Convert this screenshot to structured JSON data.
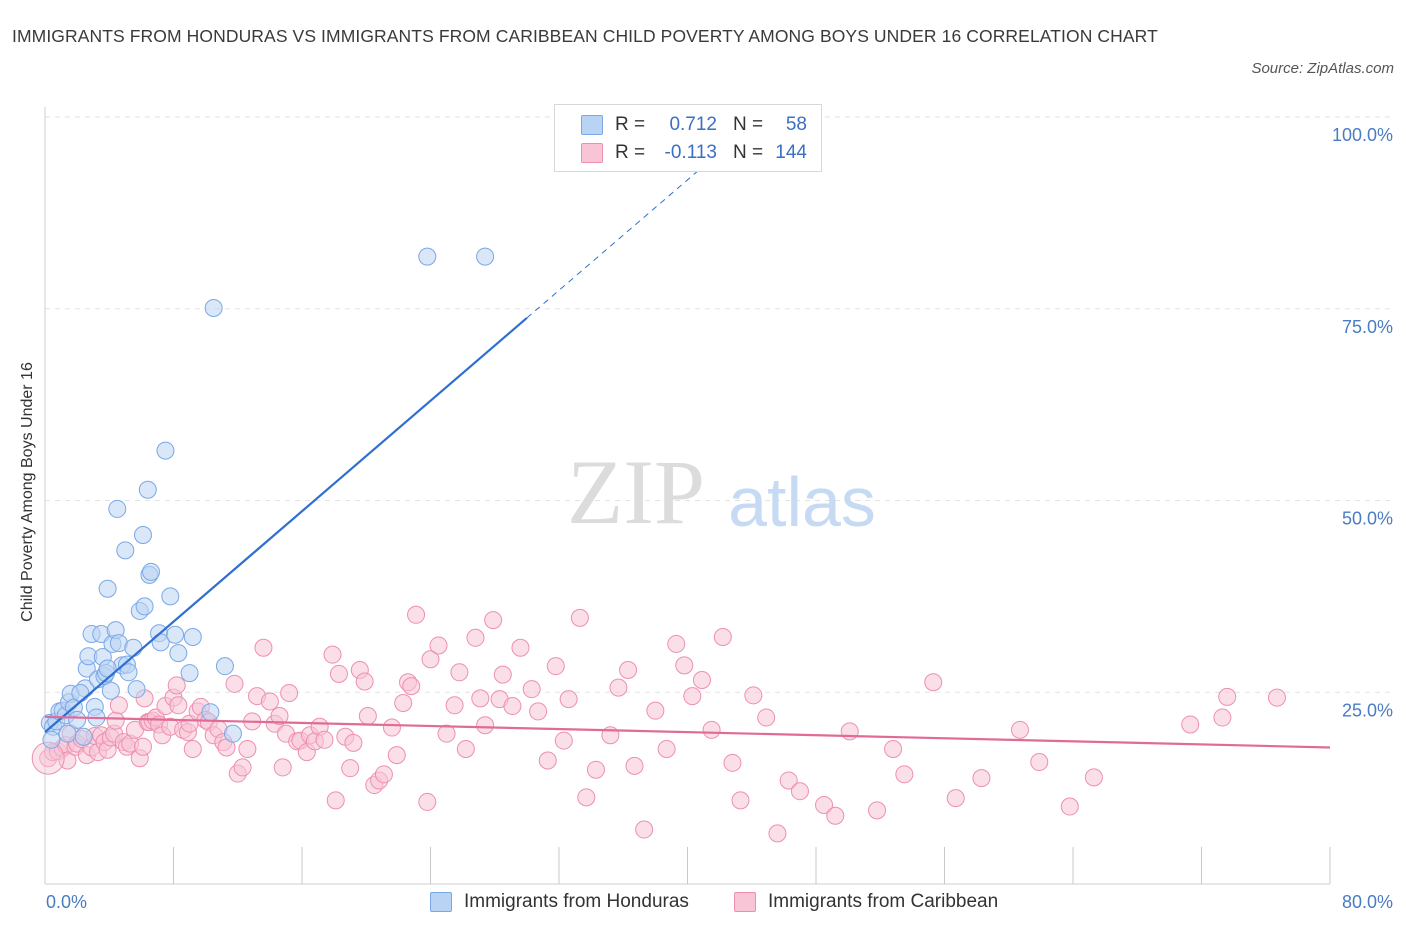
{
  "title": "IMMIGRANTS FROM HONDURAS VS IMMIGRANTS FROM CARIBBEAN CHILD POVERTY AMONG BOYS UNDER 16 CORRELATION CHART",
  "source": "Source: ZipAtlas.com",
  "watermark": {
    "zip": "ZIP",
    "atlas": "atlas"
  },
  "colors": {
    "blue": "#7aa8e6",
    "blue_fill": "#b9d3f4",
    "blue_line": "#2f6fd0",
    "pink": "#ee8fb0",
    "pink_fill": "#f7c5d6",
    "pink_line": "#e06b98",
    "axis_text": "#4a7cc4",
    "grid": "#e2e2e2"
  },
  "legend": {
    "rows": [
      {
        "r_label": "R =",
        "r_value": "0.712",
        "n_label": "N =",
        "n_value": "58"
      },
      {
        "r_label": "R =",
        "r_value": "-0.113",
        "n_label": "N =",
        "n_value": "144"
      }
    ]
  },
  "bottom_legend": [
    "Immigrants from Honduras",
    "Immigrants from Caribbean"
  ],
  "chart_data": {
    "type": "scatter",
    "title": "IMMIGRANTS FROM HONDURAS VS IMMIGRANTS FROM CARIBBEAN CHILD POVERTY AMONG BOYS UNDER 16 CORRELATION CHART",
    "xlabel": "",
    "ylabel": "Child Poverty Among Boys Under 16",
    "xlim": [
      0,
      80
    ],
    "ylim": [
      0,
      100
    ],
    "x_tick_labels": [
      "0.0%",
      "80.0%"
    ],
    "y_tick_labels": [
      "25.0%",
      "50.0%",
      "75.0%",
      "100.0%"
    ],
    "y_ticks": [
      25,
      50,
      75,
      100
    ],
    "x_minor_ticks": [
      8,
      16,
      24,
      32,
      40,
      48,
      56,
      64,
      72,
      80
    ],
    "grid": true,
    "legend_position": "top-center",
    "series": [
      {
        "name": "Immigrants from Honduras",
        "color": "#7aa8e6",
        "R": 0.712,
        "N": 58,
        "trend": {
          "x": [
            0,
            30
          ],
          "y": [
            19.8,
            73.8
          ]
        },
        "trend_dashed": {
          "x": [
            30,
            42
          ],
          "y": [
            73.8,
            95.4
          ]
        },
        "points": [
          [
            0.3,
            21
          ],
          [
            0.5,
            20.5
          ],
          [
            0.7,
            21.2
          ],
          [
            0.9,
            22.5
          ],
          [
            1.1,
            22.6
          ],
          [
            1.3,
            22
          ],
          [
            1.5,
            23.7
          ],
          [
            1.6,
            24.8
          ],
          [
            1.8,
            23
          ],
          [
            2.0,
            21.4
          ],
          [
            2.4,
            19.2
          ],
          [
            2.5,
            25.5
          ],
          [
            2.6,
            28.1
          ],
          [
            2.7,
            29.7
          ],
          [
            2.9,
            32.6
          ],
          [
            3.1,
            23.1
          ],
          [
            3.2,
            21.7
          ],
          [
            3.3,
            26.7
          ],
          [
            3.5,
            32.6
          ],
          [
            3.6,
            29.6
          ],
          [
            3.7,
            27.1
          ],
          [
            3.8,
            27.5
          ],
          [
            3.9,
            38.5
          ],
          [
            4.1,
            25.2
          ],
          [
            4.2,
            31.3
          ],
          [
            4.4,
            33.1
          ],
          [
            4.5,
            48.9
          ],
          [
            4.6,
            31.4
          ],
          [
            4.8,
            28.5
          ],
          [
            5.0,
            43.5
          ],
          [
            5.1,
            28.6
          ],
          [
            5.2,
            27.6
          ],
          [
            5.5,
            30.8
          ],
          [
            5.7,
            25.4
          ],
          [
            5.9,
            35.6
          ],
          [
            6.1,
            45.5
          ],
          [
            6.2,
            36.2
          ],
          [
            6.4,
            51.4
          ],
          [
            6.5,
            40.3
          ],
          [
            6.6,
            40.7
          ],
          [
            7.1,
            32.7
          ],
          [
            7.2,
            31.5
          ],
          [
            7.5,
            56.5
          ],
          [
            7.8,
            37.5
          ],
          [
            8.1,
            32.5
          ],
          [
            8.3,
            30.1
          ],
          [
            9.0,
            27.5
          ],
          [
            9.2,
            32.2
          ],
          [
            10.3,
            22.4
          ],
          [
            10.5,
            75.1
          ],
          [
            11.2,
            28.4
          ],
          [
            11.7,
            19.6
          ],
          [
            23.8,
            81.8
          ],
          [
            27.4,
            81.8
          ],
          [
            0.4,
            18.8
          ],
          [
            1.4,
            19.6
          ],
          [
            2.2,
            24.9
          ],
          [
            3.9,
            28.1
          ]
        ]
      },
      {
        "name": "Immigrants from Caribbean",
        "color": "#ee8fb0",
        "R": -0.113,
        "N": 144,
        "trend": {
          "x": [
            0,
            80
          ],
          "y": [
            21.8,
            17.8
          ]
        },
        "points": [
          [
            0.2,
            16.4
          ],
          [
            0.5,
            17.2
          ],
          [
            0.8,
            17.3
          ],
          [
            1.1,
            17.7
          ],
          [
            1.3,
            18.1
          ],
          [
            1.4,
            16.1
          ],
          [
            1.6,
            19.6
          ],
          [
            1.9,
            17.9
          ],
          [
            2.0,
            18.3
          ],
          [
            2.3,
            18.9
          ],
          [
            2.6,
            16.8
          ],
          [
            2.9,
            17.8
          ],
          [
            3.1,
            19.3
          ],
          [
            3.3,
            17.2
          ],
          [
            3.5,
            19.4
          ],
          [
            3.7,
            18.5
          ],
          [
            3.9,
            17.5
          ],
          [
            4.1,
            19.1
          ],
          [
            4.3,
            19.6
          ],
          [
            4.4,
            21.3
          ],
          [
            4.6,
            23.3
          ],
          [
            4.9,
            18.5
          ],
          [
            5.1,
            17.9
          ],
          [
            5.3,
            18.3
          ],
          [
            5.6,
            20.1
          ],
          [
            5.9,
            16.4
          ],
          [
            6.1,
            17.9
          ],
          [
            6.2,
            24.2
          ],
          [
            6.4,
            21.1
          ],
          [
            6.5,
            21.1
          ],
          [
            6.7,
            21.3
          ],
          [
            6.9,
            21.7
          ],
          [
            7.1,
            20.8
          ],
          [
            7.3,
            19.4
          ],
          [
            7.5,
            23.2
          ],
          [
            7.8,
            20.5
          ],
          [
            8.0,
            24.3
          ],
          [
            8.2,
            25.9
          ],
          [
            8.3,
            23.3
          ],
          [
            8.6,
            20.1
          ],
          [
            8.9,
            19.8
          ],
          [
            9.0,
            20.9
          ],
          [
            9.2,
            17.6
          ],
          [
            9.5,
            22.5
          ],
          [
            9.7,
            23.1
          ],
          [
            10.0,
            21.4
          ],
          [
            10.2,
            21.1
          ],
          [
            10.5,
            19.4
          ],
          [
            10.8,
            20.2
          ],
          [
            11.1,
            18.5
          ],
          [
            11.3,
            17.8
          ],
          [
            11.8,
            26.1
          ],
          [
            12.0,
            14.4
          ],
          [
            12.3,
            15.2
          ],
          [
            12.6,
            17.6
          ],
          [
            12.9,
            21.2
          ],
          [
            13.2,
            24.5
          ],
          [
            13.6,
            30.8
          ],
          [
            14.0,
            23.8
          ],
          [
            14.3,
            20.9
          ],
          [
            14.6,
            21.9
          ],
          [
            14.8,
            15.2
          ],
          [
            15.0,
            19.6
          ],
          [
            15.2,
            24.9
          ],
          [
            15.7,
            18.6
          ],
          [
            15.9,
            18.7
          ],
          [
            16.3,
            17.2
          ],
          [
            16.5,
            19.4
          ],
          [
            16.8,
            18.6
          ],
          [
            17.1,
            20.5
          ],
          [
            17.4,
            18.8
          ],
          [
            17.9,
            29.9
          ],
          [
            18.1,
            10.9
          ],
          [
            18.3,
            27.4
          ],
          [
            18.7,
            19.2
          ],
          [
            19.0,
            15.1
          ],
          [
            19.2,
            18.4
          ],
          [
            19.6,
            27.9
          ],
          [
            19.9,
            26.4
          ],
          [
            20.1,
            21.9
          ],
          [
            20.5,
            12.9
          ],
          [
            20.8,
            13.5
          ],
          [
            21.1,
            14.3
          ],
          [
            21.6,
            20.4
          ],
          [
            21.9,
            16.8
          ],
          [
            22.3,
            23.6
          ],
          [
            22.6,
            26.3
          ],
          [
            22.8,
            25.8
          ],
          [
            23.1,
            35.1
          ],
          [
            23.8,
            10.7
          ],
          [
            24.0,
            29.3
          ],
          [
            24.5,
            31.1
          ],
          [
            25.0,
            19.6
          ],
          [
            25.5,
            23.3
          ],
          [
            25.8,
            27.6
          ],
          [
            26.2,
            17.6
          ],
          [
            26.8,
            32.1
          ],
          [
            27.1,
            24.2
          ],
          [
            27.4,
            20.7
          ],
          [
            27.9,
            34.4
          ],
          [
            28.3,
            24.1
          ],
          [
            28.5,
            27.3
          ],
          [
            29.1,
            23.2
          ],
          [
            29.6,
            30.8
          ],
          [
            30.3,
            25.4
          ],
          [
            30.7,
            22.5
          ],
          [
            31.3,
            16.1
          ],
          [
            31.8,
            28.4
          ],
          [
            32.3,
            18.7
          ],
          [
            32.6,
            24.1
          ],
          [
            33.3,
            34.7
          ],
          [
            33.7,
            11.3
          ],
          [
            34.3,
            14.9
          ],
          [
            35.2,
            19.4
          ],
          [
            35.7,
            25.6
          ],
          [
            36.3,
            27.9
          ],
          [
            36.7,
            15.4
          ],
          [
            37.3,
            7.1
          ],
          [
            38.0,
            22.6
          ],
          [
            38.7,
            17.6
          ],
          [
            39.3,
            31.3
          ],
          [
            39.8,
            28.5
          ],
          [
            40.3,
            24.5
          ],
          [
            40.9,
            26.6
          ],
          [
            41.5,
            20.1
          ],
          [
            42.2,
            32.2
          ],
          [
            42.8,
            15.8
          ],
          [
            43.3,
            10.9
          ],
          [
            44.1,
            24.6
          ],
          [
            44.9,
            21.7
          ],
          [
            45.6,
            6.6
          ],
          [
            46.3,
            13.5
          ],
          [
            47.0,
            12.1
          ],
          [
            48.5,
            10.3
          ],
          [
            49.2,
            8.9
          ],
          [
            50.1,
            19.9
          ],
          [
            51.8,
            9.6
          ],
          [
            52.8,
            17.6
          ],
          [
            53.5,
            14.3
          ],
          [
            55.3,
            26.3
          ],
          [
            56.7,
            11.2
          ],
          [
            58.3,
            13.8
          ],
          [
            60.7,
            20.1
          ],
          [
            61.9,
            15.9
          ],
          [
            63.8,
            10.1
          ],
          [
            65.3,
            13.9
          ],
          [
            71.3,
            20.8
          ],
          [
            73.3,
            21.7
          ],
          [
            73.6,
            24.4
          ],
          [
            76.7,
            24.3
          ]
        ]
      }
    ]
  }
}
